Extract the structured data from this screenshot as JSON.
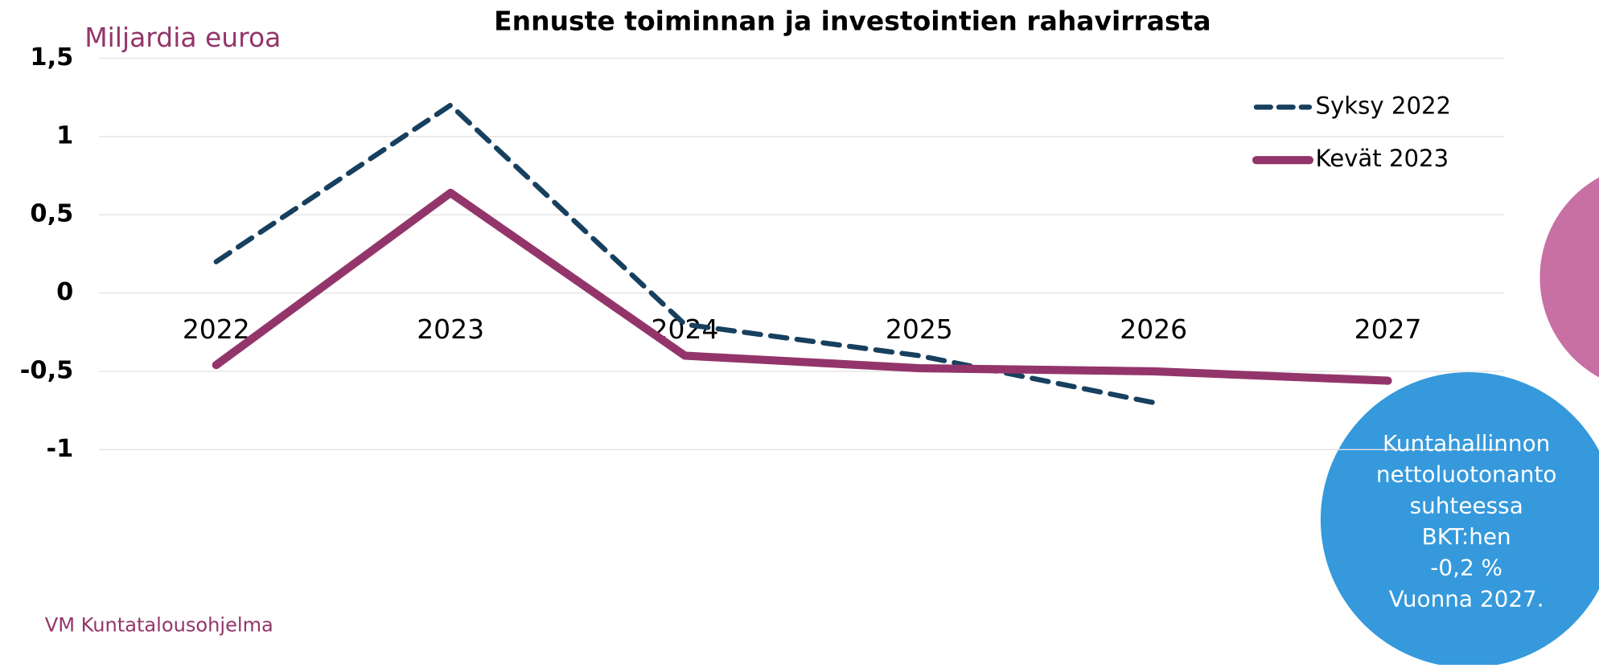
{
  "chart_data": {
    "type": "line",
    "title": "Ennuste toiminnan ja investointien rahavirrasta",
    "y_label": "Miljardia euroa",
    "source": "VM Kuntatalousohjelma",
    "categories": [
      "2022",
      "2023",
      "2024",
      "2025",
      "2026",
      "2027"
    ],
    "series": [
      {
        "name": "Syksy 2022",
        "color": "#17405f",
        "dashed": true,
        "values": [
          0.2,
          1.2,
          -0.2,
          -0.4,
          -0.7,
          null
        ]
      },
      {
        "name": "Kevät 2023",
        "color": "#93356a",
        "dashed": false,
        "values": [
          -0.46,
          0.64,
          -0.4,
          -0.48,
          -0.5,
          -0.56
        ]
      }
    ],
    "ylim": [
      -1,
      1.5
    ],
    "yticks": [
      -1,
      {
        "value": -0.5,
        "label": "-0,5"
      },
      0,
      {
        "value": 0.5,
        "label": "0,5"
      },
      1,
      {
        "value": 1.5,
        "label": "1,5"
      }
    ],
    "grid": true,
    "legend": "upper right",
    "annotation": [
      "Kuntahallinnon",
      "nettoluotonanto",
      "suhteessa",
      "BKT:hen",
      "-0,2 %",
      "Vuonna 2027."
    ]
  }
}
